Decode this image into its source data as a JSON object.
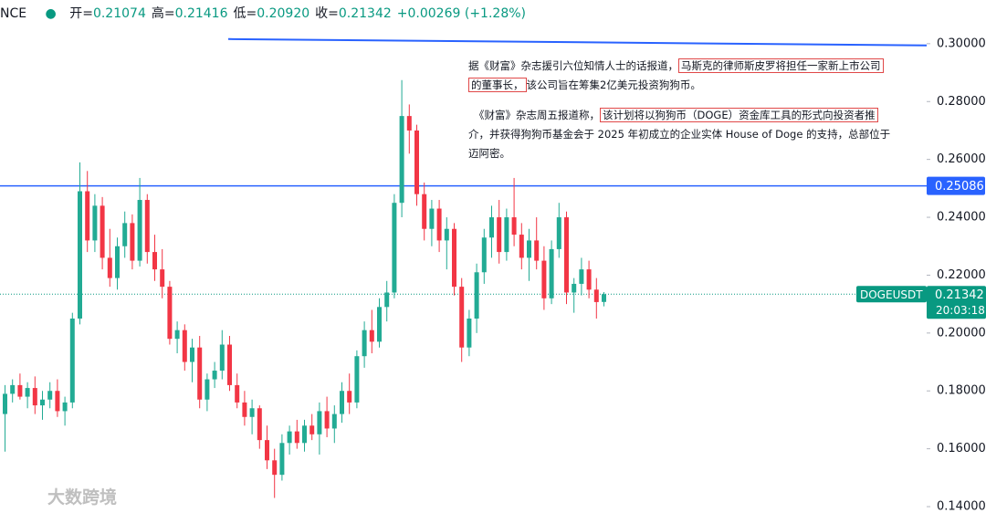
{
  "header": {
    "symbol": "NCE",
    "items": [
      {
        "label": "开=",
        "value": "0.21074"
      },
      {
        "label": "高=",
        "value": "0.21416"
      },
      {
        "label": "低=",
        "value": "0.20920"
      },
      {
        "label": "收=",
        "value": "0.21342"
      },
      {
        "label": "",
        "value": "+0.00269 (+1.28%)"
      }
    ]
  },
  "chart_data": {
    "type": "candlestick",
    "up_color": "#22ab94",
    "down_color": "#f23645",
    "ylim": [
      0.1378,
      0.3151
    ],
    "yticks": [
      {
        "value": 0.14,
        "label": "0.14000"
      },
      {
        "value": 0.16,
        "label": "0.16000"
      },
      {
        "value": 0.18,
        "label": "0.18000"
      },
      {
        "value": 0.2,
        "label": "0.20000"
      },
      {
        "value": 0.22,
        "label": "0.22000"
      },
      {
        "value": 0.24,
        "label": "0.24000"
      },
      {
        "value": 0.26,
        "label": "0.26000"
      },
      {
        "value": 0.28,
        "label": "0.28000"
      },
      {
        "value": 0.3,
        "label": "0.30000"
      }
    ],
    "grid": false,
    "ohlc": [
      [
        0.172,
        0.182,
        0.159,
        0.179
      ],
      [
        0.179,
        0.184,
        0.176,
        0.182
      ],
      [
        0.182,
        0.186,
        0.177,
        0.178
      ],
      [
        0.178,
        0.183,
        0.174,
        0.181
      ],
      [
        0.181,
        0.185,
        0.172,
        0.175
      ],
      [
        0.175,
        0.18,
        0.17,
        0.177
      ],
      [
        0.177,
        0.183,
        0.174,
        0.18
      ],
      [
        0.18,
        0.184,
        0.171,
        0.173
      ],
      [
        0.173,
        0.178,
        0.168,
        0.176
      ],
      [
        0.176,
        0.207,
        0.174,
        0.205
      ],
      [
        0.205,
        0.259,
        0.203,
        0.249
      ],
      [
        0.249,
        0.256,
        0.228,
        0.232
      ],
      [
        0.232,
        0.248,
        0.228,
        0.244
      ],
      [
        0.244,
        0.247,
        0.222,
        0.226
      ],
      [
        0.226,
        0.236,
        0.216,
        0.219
      ],
      [
        0.219,
        0.233,
        0.215,
        0.23
      ],
      [
        0.23,
        0.242,
        0.226,
        0.238
      ],
      [
        0.238,
        0.241,
        0.222,
        0.225
      ],
      [
        0.225,
        0.2536,
        0.223,
        0.246
      ],
      [
        0.246,
        0.248,
        0.224,
        0.228
      ],
      [
        0.228,
        0.234,
        0.218,
        0.222
      ],
      [
        0.222,
        0.229,
        0.212,
        0.216
      ],
      [
        0.216,
        0.218,
        0.196,
        0.198
      ],
      [
        0.198,
        0.204,
        0.193,
        0.201
      ],
      [
        0.201,
        0.203,
        0.187,
        0.19
      ],
      [
        0.19,
        0.198,
        0.183,
        0.195
      ],
      [
        0.195,
        0.199,
        0.174,
        0.177
      ],
      [
        0.177,
        0.186,
        0.173,
        0.184
      ],
      [
        0.184,
        0.19,
        0.181,
        0.187
      ],
      [
        0.187,
        0.201,
        0.184,
        0.196
      ],
      [
        0.196,
        0.199,
        0.18,
        0.182
      ],
      [
        0.182,
        0.186,
        0.174,
        0.176
      ],
      [
        0.176,
        0.18,
        0.168,
        0.171
      ],
      [
        0.171,
        0.177,
        0.165,
        0.174
      ],
      [
        0.174,
        0.175,
        0.16,
        0.163
      ],
      [
        0.163,
        0.168,
        0.153,
        0.156
      ],
      [
        0.156,
        0.16,
        0.143,
        0.151
      ],
      [
        0.151,
        0.165,
        0.149,
        0.162
      ],
      [
        0.162,
        0.168,
        0.158,
        0.166
      ],
      [
        0.166,
        0.17,
        0.16,
        0.162
      ],
      [
        0.162,
        0.17,
        0.159,
        0.168
      ],
      [
        0.168,
        0.172,
        0.163,
        0.165
      ],
      [
        0.165,
        0.176,
        0.158,
        0.173
      ],
      [
        0.173,
        0.178,
        0.164,
        0.167
      ],
      [
        0.167,
        0.175,
        0.162,
        0.172
      ],
      [
        0.172,
        0.183,
        0.169,
        0.18
      ],
      [
        0.18,
        0.186,
        0.172,
        0.176
      ],
      [
        0.176,
        0.194,
        0.174,
        0.192
      ],
      [
        0.192,
        0.204,
        0.188,
        0.201
      ],
      [
        0.201,
        0.208,
        0.193,
        0.197
      ],
      [
        0.197,
        0.212,
        0.195,
        0.209
      ],
      [
        0.209,
        0.218,
        0.204,
        0.214
      ],
      [
        0.214,
        0.248,
        0.212,
        0.245
      ],
      [
        0.245,
        0.2874,
        0.24,
        0.275
      ],
      [
        0.275,
        0.279,
        0.262,
        0.27
      ],
      [
        0.27,
        0.272,
        0.244,
        0.248
      ],
      [
        0.248,
        0.252,
        0.232,
        0.236
      ],
      [
        0.236,
        0.246,
        0.23,
        0.243
      ],
      [
        0.243,
        0.246,
        0.228,
        0.232
      ],
      [
        0.232,
        0.24,
        0.222,
        0.236
      ],
      [
        0.236,
        0.238,
        0.213,
        0.216
      ],
      [
        0.216,
        0.219,
        0.19,
        0.195
      ],
      [
        0.195,
        0.208,
        0.192,
        0.205
      ],
      [
        0.205,
        0.224,
        0.2,
        0.221
      ],
      [
        0.221,
        0.236,
        0.217,
        0.233
      ],
      [
        0.233,
        0.244,
        0.226,
        0.24
      ],
      [
        0.24,
        0.246,
        0.224,
        0.228
      ],
      [
        0.228,
        0.243,
        0.225,
        0.24
      ],
      [
        0.24,
        0.2536,
        0.23,
        0.234
      ],
      [
        0.234,
        0.238,
        0.222,
        0.226
      ],
      [
        0.226,
        0.236,
        0.218,
        0.232
      ],
      [
        0.232,
        0.24,
        0.222,
        0.225
      ],
      [
        0.225,
        0.23,
        0.208,
        0.212
      ],
      [
        0.212,
        0.232,
        0.21,
        0.229
      ],
      [
        0.229,
        0.245,
        0.226,
        0.24
      ],
      [
        0.24,
        0.242,
        0.21,
        0.214
      ],
      [
        0.214,
        0.219,
        0.207,
        0.217
      ],
      [
        0.217,
        0.226,
        0.213,
        0.222
      ],
      [
        0.222,
        0.225,
        0.212,
        0.215
      ],
      [
        0.215,
        0.219,
        0.205,
        0.2107
      ],
      [
        0.21074,
        0.21416,
        0.2092,
        0.21342
      ]
    ],
    "hlines": [
      {
        "value": 0.25086,
        "color": "#2962ff"
      }
    ],
    "trend_line": {
      "y": [
        0.3016,
        0.2994
      ],
      "color": "#2962ff"
    },
    "last_price": {
      "symbol": "DOGEUSDT",
      "value": 0.21342,
      "countdown": "20:03:18",
      "color": "#089981"
    }
  },
  "annotation": {
    "lines": [
      [
        {
          "text": "据《财富》杂志援引六位知情人士的话报道，",
          "boxed": false
        },
        {
          "text": "马斯克的律师斯皮罗将担任一家新上市公司",
          "boxed": true
        }
      ],
      [
        {
          "text": "的董事长，",
          "boxed": true
        },
        {
          "text": "该公司旨在筹集2亿美元投资狗狗币。",
          "boxed": false
        }
      ],
      [
        {
          "text": "《财富》杂志周五报道称，",
          "boxed": false
        },
        {
          "text": "该计划将以狗狗币（DOGE）资金库工具的形式向投资者推",
          "boxed": true
        }
      ],
      [
        {
          "text": "介，并获得狗狗币基金会于 2025 年初成立的企业实体 House of Doge 的支持，总部位于",
          "boxed": false
        }
      ],
      [
        {
          "text": "迈阿密。",
          "boxed": false
        }
      ]
    ]
  },
  "watermark": "大数跨境"
}
